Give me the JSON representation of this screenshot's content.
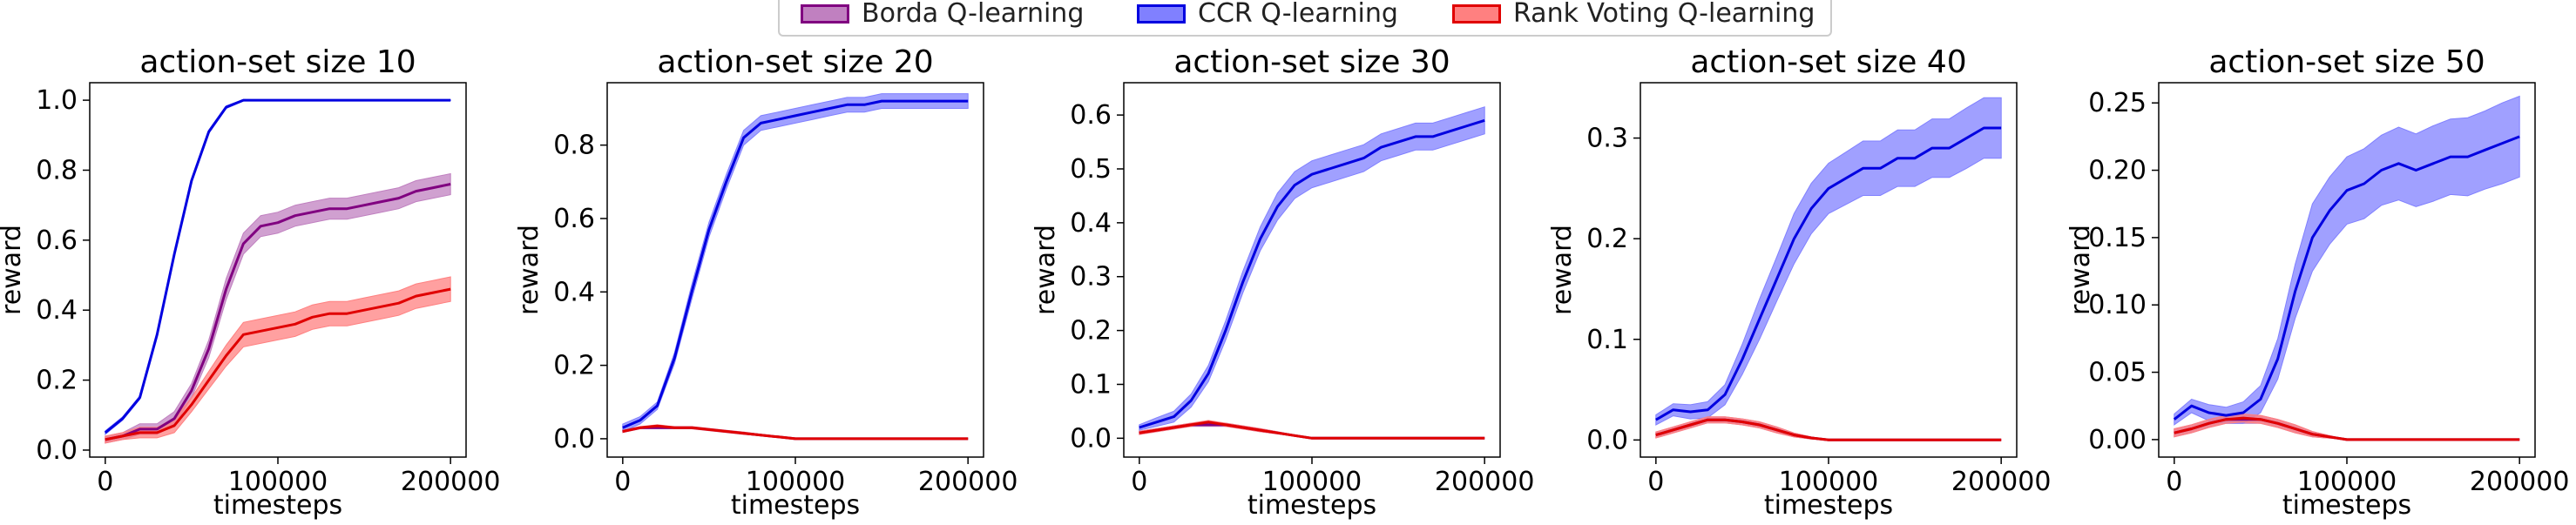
{
  "legend": {
    "items": [
      {
        "label": "Borda Q-learning",
        "line": "#800080",
        "fill": "#c080c0"
      },
      {
        "label": "CCR Q-learning",
        "line": "#0000e0",
        "fill": "#8080ff"
      },
      {
        "label": "Rank Voting Q-learning",
        "line": "#e00000",
        "fill": "#ff8080"
      }
    ]
  },
  "chart_data": [
    {
      "type": "line",
      "title": "action-set size 10",
      "xlabel": "timesteps",
      "ylabel": "reward",
      "xlim": [
        -9000,
        209000
      ],
      "ylim": [
        -0.02,
        1.05
      ],
      "xticks": [
        0,
        100000,
        200000
      ],
      "xtick_labels": [
        "0",
        "100000",
        "200000"
      ],
      "yticks": [
        0.0,
        0.2,
        0.4,
        0.6,
        0.8,
        1.0
      ],
      "ytick_labels": [
        "0.0",
        "0.2",
        "0.4",
        "0.6",
        "0.8",
        "1.0"
      ],
      "x": [
        0,
        10000,
        20000,
        30000,
        40000,
        50000,
        60000,
        70000,
        80000,
        90000,
        100000,
        110000,
        120000,
        130000,
        140000,
        150000,
        160000,
        170000,
        180000,
        190000,
        200000
      ],
      "series": [
        {
          "name": "Borda Q-learning",
          "color": "#800080",
          "band": "#c080c0",
          "values": [
            0.03,
            0.04,
            0.06,
            0.06,
            0.09,
            0.17,
            0.29,
            0.46,
            0.59,
            0.64,
            0.65,
            0.67,
            0.68,
            0.69,
            0.69,
            0.7,
            0.71,
            0.72,
            0.74,
            0.75,
            0.76
          ],
          "spread": [
            0.01,
            0.01,
            0.015,
            0.015,
            0.02,
            0.02,
            0.025,
            0.03,
            0.03,
            0.03,
            0.03,
            0.03,
            0.03,
            0.03,
            0.03,
            0.03,
            0.03,
            0.03,
            0.03,
            0.03,
            0.03
          ]
        },
        {
          "name": "CCR Q-learning",
          "color": "#0000e0",
          "band": "#8080ff",
          "values": [
            0.05,
            0.09,
            0.15,
            0.33,
            0.56,
            0.77,
            0.91,
            0.98,
            1.0,
            1.0,
            1.0,
            1.0,
            1.0,
            1.0,
            1.0,
            1.0,
            1.0,
            1.0,
            1.0,
            1.0,
            1.0
          ],
          "spread": [
            0.005,
            0.005,
            0.005,
            0.005,
            0.005,
            0.005,
            0.005,
            0.004,
            0.002,
            0.001,
            0.001,
            0.001,
            0.001,
            0.001,
            0.001,
            0.001,
            0.001,
            0.001,
            0.001,
            0.001,
            0.001
          ]
        },
        {
          "name": "Rank Voting Q-learning",
          "color": "#e00000",
          "band": "#ff8080",
          "values": [
            0.03,
            0.04,
            0.05,
            0.05,
            0.07,
            0.13,
            0.2,
            0.27,
            0.33,
            0.34,
            0.35,
            0.36,
            0.38,
            0.39,
            0.39,
            0.4,
            0.41,
            0.42,
            0.44,
            0.45,
            0.46
          ],
          "spread": [
            0.01,
            0.01,
            0.015,
            0.015,
            0.02,
            0.02,
            0.025,
            0.03,
            0.035,
            0.035,
            0.035,
            0.035,
            0.035,
            0.035,
            0.035,
            0.035,
            0.035,
            0.035,
            0.035,
            0.035,
            0.035
          ]
        }
      ]
    },
    {
      "type": "line",
      "title": "action-set size 20",
      "xlabel": "timesteps",
      "ylabel": "reward",
      "xlim": [
        -9000,
        209000
      ],
      "ylim": [
        -0.05,
        0.97
      ],
      "xticks": [
        0,
        100000,
        200000
      ],
      "xtick_labels": [
        "0",
        "100000",
        "200000"
      ],
      "yticks": [
        0.0,
        0.2,
        0.4,
        0.6,
        0.8
      ],
      "ytick_labels": [
        "0.0",
        "0.2",
        "0.4",
        "0.6",
        "0.8"
      ],
      "x": [
        0,
        10000,
        20000,
        30000,
        40000,
        50000,
        60000,
        70000,
        80000,
        90000,
        100000,
        110000,
        120000,
        130000,
        140000,
        150000,
        160000,
        170000,
        180000,
        190000,
        200000
      ],
      "series": [
        {
          "name": "Borda Q-learning",
          "color": "#800080",
          "band": "#c080c0",
          "values": [
            0.02,
            0.03,
            0.03,
            0.03,
            0.03,
            0.025,
            0.02,
            0.015,
            0.01,
            0.005,
            0.0,
            0.0,
            0.0,
            0.0,
            0.0,
            0.0,
            0.0,
            0.0,
            0.0,
            0.0,
            0.0
          ],
          "spread": [
            0.003,
            0.003,
            0.003,
            0.003,
            0.003,
            0.003,
            0.003,
            0.003,
            0.002,
            0.001,
            0.0,
            0.0,
            0.0,
            0.0,
            0.0,
            0.0,
            0.0,
            0.0,
            0.0,
            0.0,
            0.0
          ]
        },
        {
          "name": "CCR Q-learning",
          "color": "#0000e0",
          "band": "#8080ff",
          "values": [
            0.03,
            0.05,
            0.09,
            0.22,
            0.4,
            0.57,
            0.7,
            0.82,
            0.86,
            0.87,
            0.88,
            0.89,
            0.9,
            0.91,
            0.91,
            0.92,
            0.92,
            0.92,
            0.92,
            0.92,
            0.92
          ],
          "spread": [
            0.01,
            0.01,
            0.01,
            0.015,
            0.02,
            0.02,
            0.02,
            0.02,
            0.02,
            0.02,
            0.02,
            0.02,
            0.02,
            0.02,
            0.02,
            0.02,
            0.02,
            0.02,
            0.02,
            0.02,
            0.02
          ]
        },
        {
          "name": "Rank Voting Q-learning",
          "color": "#e00000",
          "band": "#ff8080",
          "values": [
            0.02,
            0.03,
            0.035,
            0.03,
            0.03,
            0.025,
            0.02,
            0.015,
            0.01,
            0.005,
            0.0,
            0.0,
            0.0,
            0.0,
            0.0,
            0.0,
            0.0,
            0.0,
            0.0,
            0.0,
            0.0
          ],
          "spread": [
            0.003,
            0.003,
            0.003,
            0.003,
            0.003,
            0.003,
            0.003,
            0.003,
            0.002,
            0.001,
            0.0,
            0.0,
            0.0,
            0.0,
            0.0,
            0.0,
            0.0,
            0.0,
            0.0,
            0.0,
            0.0
          ]
        }
      ]
    },
    {
      "type": "line",
      "title": "action-set size 30",
      "xlabel": "timesteps",
      "ylabel": "reward",
      "xlim": [
        -9000,
        209000
      ],
      "ylim": [
        -0.035,
        0.66
      ],
      "xticks": [
        0,
        100000,
        200000
      ],
      "xtick_labels": [
        "0",
        "100000",
        "200000"
      ],
      "yticks": [
        0.0,
        0.1,
        0.2,
        0.3,
        0.4,
        0.5,
        0.6
      ],
      "ytick_labels": [
        "0.0",
        "0.1",
        "0.2",
        "0.3",
        "0.4",
        "0.5",
        "0.6"
      ],
      "x": [
        0,
        10000,
        20000,
        30000,
        40000,
        50000,
        60000,
        70000,
        80000,
        90000,
        100000,
        110000,
        120000,
        130000,
        140000,
        150000,
        160000,
        170000,
        180000,
        190000,
        200000
      ],
      "series": [
        {
          "name": "Borda Q-learning",
          "color": "#800080",
          "band": "#c080c0",
          "values": [
            0.01,
            0.015,
            0.02,
            0.025,
            0.025,
            0.025,
            0.02,
            0.015,
            0.01,
            0.005,
            0.0,
            0.0,
            0.0,
            0.0,
            0.0,
            0.0,
            0.0,
            0.0,
            0.0,
            0.0,
            0.0
          ],
          "spread": [
            0.003,
            0.003,
            0.003,
            0.003,
            0.003,
            0.003,
            0.003,
            0.003,
            0.002,
            0.001,
            0.0,
            0.0,
            0.0,
            0.0,
            0.0,
            0.0,
            0.0,
            0.0,
            0.0,
            0.0,
            0.0
          ]
        },
        {
          "name": "CCR Q-learning",
          "color": "#0000e0",
          "band": "#8080ff",
          "values": [
            0.02,
            0.03,
            0.04,
            0.07,
            0.12,
            0.2,
            0.29,
            0.37,
            0.43,
            0.47,
            0.49,
            0.5,
            0.51,
            0.52,
            0.54,
            0.55,
            0.56,
            0.56,
            0.57,
            0.58,
            0.59
          ],
          "spread": [
            0.005,
            0.008,
            0.01,
            0.012,
            0.015,
            0.018,
            0.02,
            0.022,
            0.025,
            0.025,
            0.025,
            0.025,
            0.025,
            0.025,
            0.025,
            0.025,
            0.025,
            0.025,
            0.025,
            0.025,
            0.025
          ]
        },
        {
          "name": "Rank Voting Q-learning",
          "color": "#e00000",
          "band": "#ff8080",
          "values": [
            0.01,
            0.015,
            0.02,
            0.025,
            0.03,
            0.025,
            0.02,
            0.015,
            0.01,
            0.005,
            0.0,
            0.0,
            0.0,
            0.0,
            0.0,
            0.0,
            0.0,
            0.0,
            0.0,
            0.0,
            0.0
          ],
          "spread": [
            0.003,
            0.003,
            0.003,
            0.003,
            0.003,
            0.003,
            0.003,
            0.003,
            0.002,
            0.001,
            0.0,
            0.0,
            0.0,
            0.0,
            0.0,
            0.0,
            0.0,
            0.0,
            0.0,
            0.0,
            0.0
          ]
        }
      ]
    },
    {
      "type": "line",
      "title": "action-set size 40",
      "xlabel": "timesteps",
      "ylabel": "reward",
      "xlim": [
        -9000,
        209000
      ],
      "ylim": [
        -0.017,
        0.355
      ],
      "xticks": [
        0,
        100000,
        200000
      ],
      "xtick_labels": [
        "0",
        "100000",
        "200000"
      ],
      "yticks": [
        0.0,
        0.1,
        0.2,
        0.3
      ],
      "ytick_labels": [
        "0.0",
        "0.1",
        "0.2",
        "0.3"
      ],
      "x": [
        0,
        10000,
        20000,
        30000,
        40000,
        50000,
        60000,
        70000,
        80000,
        90000,
        100000,
        110000,
        120000,
        130000,
        140000,
        150000,
        160000,
        170000,
        180000,
        190000,
        200000
      ],
      "series": [
        {
          "name": "Borda Q-learning",
          "color": "#800080",
          "band": "#c080c0",
          "values": [
            0.005,
            0.01,
            0.015,
            0.02,
            0.02,
            0.018,
            0.015,
            0.01,
            0.005,
            0.002,
            0.0,
            0.0,
            0.0,
            0.0,
            0.0,
            0.0,
            0.0,
            0.0,
            0.0,
            0.0,
            0.0
          ],
          "spread": [
            0.003,
            0.003,
            0.003,
            0.003,
            0.003,
            0.003,
            0.003,
            0.003,
            0.002,
            0.001,
            0.0,
            0.0,
            0.0,
            0.0,
            0.0,
            0.0,
            0.0,
            0.0,
            0.0,
            0.0,
            0.0
          ]
        },
        {
          "name": "CCR Q-learning",
          "color": "#0000e0",
          "band": "#8080ff",
          "values": [
            0.02,
            0.03,
            0.028,
            0.03,
            0.045,
            0.08,
            0.12,
            0.16,
            0.2,
            0.23,
            0.25,
            0.26,
            0.27,
            0.27,
            0.28,
            0.28,
            0.29,
            0.29,
            0.3,
            0.31,
            0.31
          ],
          "spread": [
            0.005,
            0.006,
            0.007,
            0.008,
            0.01,
            0.015,
            0.02,
            0.022,
            0.025,
            0.025,
            0.025,
            0.026,
            0.027,
            0.027,
            0.028,
            0.028,
            0.029,
            0.029,
            0.03,
            0.03,
            0.03
          ]
        },
        {
          "name": "Rank Voting Q-learning",
          "color": "#e00000",
          "band": "#ff8080",
          "values": [
            0.005,
            0.01,
            0.015,
            0.02,
            0.02,
            0.018,
            0.015,
            0.01,
            0.005,
            0.002,
            0.0,
            0.0,
            0.0,
            0.0,
            0.0,
            0.0,
            0.0,
            0.0,
            0.0,
            0.0,
            0.0
          ],
          "spread": [
            0.003,
            0.003,
            0.003,
            0.003,
            0.003,
            0.003,
            0.003,
            0.003,
            0.002,
            0.001,
            0.0,
            0.0,
            0.0,
            0.0,
            0.0,
            0.0,
            0.0,
            0.0,
            0.0,
            0.0,
            0.0
          ]
        }
      ]
    },
    {
      "type": "line",
      "title": "action-set size 50",
      "xlabel": "timesteps",
      "ylabel": "reward",
      "xlim": [
        -9000,
        209000
      ],
      "ylim": [
        -0.013,
        0.265
      ],
      "xticks": [
        0,
        100000,
        200000
      ],
      "xtick_labels": [
        "0",
        "100000",
        "200000"
      ],
      "yticks": [
        0.0,
        0.05,
        0.1,
        0.15,
        0.2,
        0.25
      ],
      "ytick_labels": [
        "0.00",
        "0.05",
        "0.10",
        "0.15",
        "0.20",
        "0.25"
      ],
      "x": [
        0,
        10000,
        20000,
        30000,
        40000,
        50000,
        60000,
        70000,
        80000,
        90000,
        100000,
        110000,
        120000,
        130000,
        140000,
        150000,
        160000,
        170000,
        180000,
        190000,
        200000
      ],
      "series": [
        {
          "name": "Borda Q-learning",
          "color": "#800080",
          "band": "#c080c0",
          "values": [
            0.005,
            0.008,
            0.012,
            0.015,
            0.015,
            0.015,
            0.012,
            0.008,
            0.004,
            0.002,
            0.0,
            0.0,
            0.0,
            0.0,
            0.0,
            0.0,
            0.0,
            0.0,
            0.0,
            0.0,
            0.0
          ],
          "spread": [
            0.003,
            0.003,
            0.003,
            0.003,
            0.003,
            0.003,
            0.003,
            0.003,
            0.002,
            0.001,
            0.0,
            0.0,
            0.0,
            0.0,
            0.0,
            0.0,
            0.0,
            0.0,
            0.0,
            0.0,
            0.0
          ]
        },
        {
          "name": "CCR Q-learning",
          "color": "#0000e0",
          "band": "#8080ff",
          "values": [
            0.015,
            0.025,
            0.02,
            0.018,
            0.02,
            0.03,
            0.06,
            0.11,
            0.15,
            0.17,
            0.185,
            0.19,
            0.2,
            0.205,
            0.2,
            0.205,
            0.21,
            0.21,
            0.215,
            0.22,
            0.225
          ],
          "spread": [
            0.004,
            0.005,
            0.006,
            0.006,
            0.008,
            0.01,
            0.015,
            0.02,
            0.025,
            0.025,
            0.025,
            0.026,
            0.026,
            0.027,
            0.027,
            0.028,
            0.028,
            0.029,
            0.029,
            0.03,
            0.03
          ]
        },
        {
          "name": "Rank Voting Q-learning",
          "color": "#e00000",
          "band": "#ff8080",
          "values": [
            0.005,
            0.008,
            0.012,
            0.015,
            0.016,
            0.015,
            0.012,
            0.008,
            0.004,
            0.002,
            0.0,
            0.0,
            0.0,
            0.0,
            0.0,
            0.0,
            0.0,
            0.0,
            0.0,
            0.0,
            0.0
          ],
          "spread": [
            0.003,
            0.003,
            0.003,
            0.003,
            0.003,
            0.003,
            0.003,
            0.003,
            0.002,
            0.001,
            0.0,
            0.0,
            0.0,
            0.0,
            0.0,
            0.0,
            0.0,
            0.0,
            0.0,
            0.0,
            0.0
          ]
        }
      ]
    }
  ]
}
